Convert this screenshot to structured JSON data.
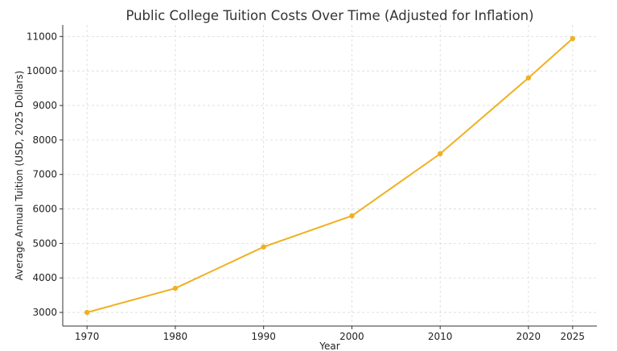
{
  "chart_data": {
    "type": "line",
    "title": "Public College Tuition Costs Over Time (Adjusted for Inflation)",
    "xlabel": "Year",
    "ylabel": "Average Annual Tuition (USD, 2025 Dollars)",
    "x": [
      1970,
      1980,
      1990,
      2000,
      2010,
      2020,
      2025
    ],
    "series": [
      {
        "values": [
          3000,
          3700,
          4900,
          5800,
          7600,
          9800,
          10940
        ],
        "color": "#f0b020"
      }
    ],
    "xticks": [
      "1970",
      "1980",
      "1990",
      "2000",
      "2010",
      "2020",
      "2025"
    ],
    "yticks": [
      "3000",
      "4000",
      "5000",
      "6000",
      "7000",
      "8000",
      "9000",
      "10000",
      "11000"
    ],
    "xlim": [
      1967.25,
      2027.75
    ],
    "ylim": [
      2605,
      11335
    ],
    "grid": true,
    "legend": "none"
  }
}
